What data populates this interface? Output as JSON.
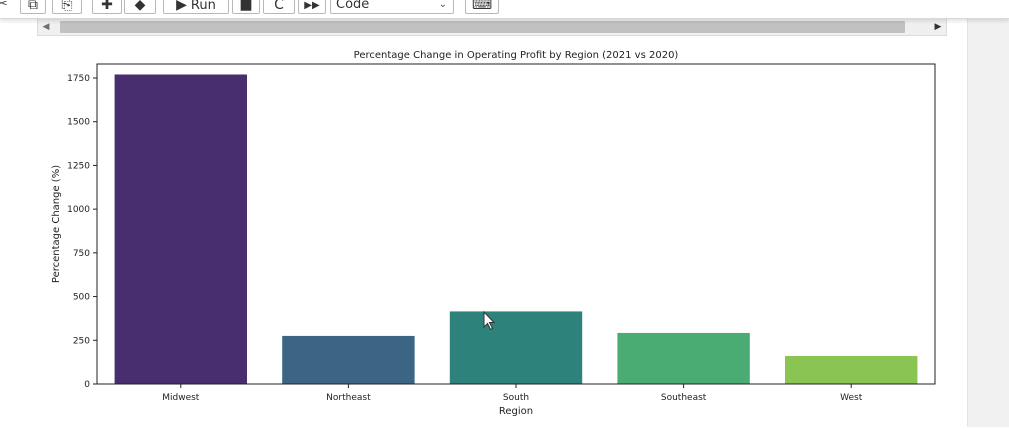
{
  "toolbar": {
    "items": [
      {
        "icon": "scissors-icon",
        "glyph": "✂"
      },
      {
        "icon": "copy-icon",
        "glyph": "⧉"
      },
      {
        "icon": "paste-icon",
        "glyph": "⎘"
      },
      {
        "icon": "move-up-icon",
        "glyph": "✚"
      },
      {
        "icon": "move-down-icon",
        "glyph": "◆"
      },
      {
        "icon": "run-icon",
        "glyph": "▶",
        "label": "Run"
      },
      {
        "icon": "stop-icon",
        "glyph": "■"
      },
      {
        "icon": "restart-icon",
        "glyph": "C"
      },
      {
        "icon": "fast-forward-icon",
        "glyph": "▶▶"
      },
      {
        "icon": "keyboard-icon",
        "glyph": "⌨"
      }
    ],
    "cell_type": "Code"
  },
  "scrollbar": {
    "left_arrow": "◀",
    "right_arrow": "▶"
  },
  "chart_data": {
    "type": "bar",
    "title": "Percentage Change in Operating Profit by Region (2021 vs 2020)",
    "xlabel": "Region",
    "ylabel": "Percentage Change (%)",
    "categories": [
      "Midwest",
      "Northeast",
      "South",
      "Southeast",
      "West"
    ],
    "values": [
      1770,
      275,
      415,
      292,
      160
    ],
    "colors": [
      "#482d6f",
      "#3b6583",
      "#2d837c",
      "#4aac72",
      "#8ac452"
    ],
    "ylim": [
      0,
      1830
    ],
    "yticks": [
      0,
      250,
      500,
      750,
      1000,
      1250,
      1500,
      1750
    ],
    "grid": false
  }
}
